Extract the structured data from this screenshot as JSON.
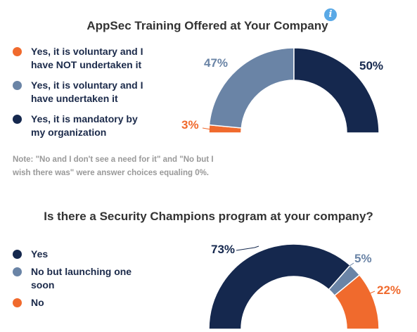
{
  "chart_data": [
    {
      "type": "pie",
      "style": "half-donut",
      "title": "AppSec Training Offered at Your Company",
      "legend_position": "left",
      "categories": [
        "Yes, it is voluntary and I have NOT undertaken it",
        "Yes, it is voluntary and I have undertaken it",
        "Yes, it is mandatory by my organization"
      ],
      "values": [
        3,
        47,
        50
      ],
      "labels": [
        "3%",
        "47%",
        "50%"
      ],
      "colors": [
        "#f06a2d",
        "#6a84a6",
        "#15284e"
      ],
      "label_colors": [
        "#f06a2d",
        "#6a84a6",
        "#15284e"
      ],
      "legend_lines": [
        [
          "Yes, it is voluntary and I",
          "have NOT undertaken it"
        ],
        [
          "Yes, it is voluntary and I",
          "have undertaken it"
        ],
        [
          "Yes, it is mandatory by",
          "my organization"
        ]
      ],
      "note_lines": [
        "Note: \"No and I don't see a need for it\" and \"No but I",
        "wish there was\" were answer choices equaling 0%."
      ]
    },
    {
      "type": "pie",
      "style": "half-donut",
      "title": "Is there a Security Champions program at your company?",
      "legend_position": "left",
      "categories": [
        "Yes",
        "No but launching one soon",
        "No"
      ],
      "values": [
        73,
        5,
        22
      ],
      "labels": [
        "73%",
        "5%",
        "22%"
      ],
      "colors": [
        "#15284e",
        "#6a84a6",
        "#f06a2d"
      ],
      "label_colors": [
        "#15284e",
        "#6a84a6",
        "#f06a2d"
      ],
      "legend_lines": [
        [
          "Yes"
        ],
        [
          "No but launching one",
          "soon"
        ],
        [
          "No"
        ]
      ]
    }
  ],
  "info_icon": "info-icon"
}
